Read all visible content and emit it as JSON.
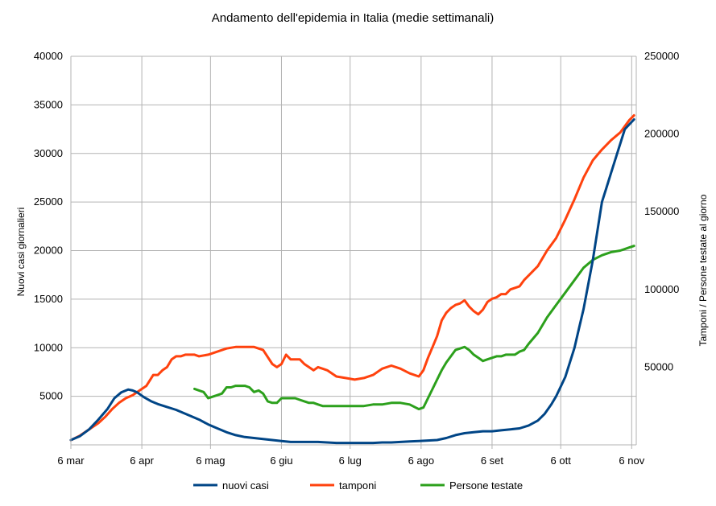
{
  "chart_data": {
    "type": "line",
    "title": "Andamento dell'epidemia in Italia (medie settimanali)",
    "ylabel": "Nuovi casi giornalieri",
    "y2label": "Tamponi / Persone testate al giorno",
    "x_ticks": [
      "6 mar",
      "6 apr",
      "6 mag",
      "6 giu",
      "6 lug",
      "6 ago",
      "6 set",
      "6 ott",
      "6 nov"
    ],
    "xlim_days": [
      0,
      247
    ],
    "ylim": [
      0,
      40000
    ],
    "y_ticks": [
      "5000",
      "10000",
      "15000",
      "20000",
      "25000",
      "30000",
      "35000",
      "40000"
    ],
    "y2lim": [
      0,
      250000
    ],
    "y2_ticks": [
      "50000",
      "100000",
      "150000",
      "200000",
      "250000"
    ],
    "grid": true,
    "legend": "bottom",
    "series": [
      {
        "name": "nuovi casi",
        "axis": "left",
        "color": "#004586",
        "x": [
          0,
          4,
          8,
          12,
          16,
          19,
          22,
          25,
          27,
          29,
          32,
          35,
          38,
          42,
          46,
          52,
          56,
          60,
          64,
          68,
          72,
          76,
          80,
          84,
          88,
          92,
          96,
          100,
          104,
          108,
          112,
          116,
          120,
          124,
          128,
          132,
          136,
          140,
          144,
          148,
          152,
          156,
          160,
          164,
          168,
          172,
          176,
          180,
          184,
          188,
          192,
          196,
          200,
          204,
          207,
          210,
          212,
          214,
          216,
          218,
          220,
          222,
          224,
          226,
          228,
          230,
          232,
          234,
          236,
          238,
          240,
          242,
          244,
          246
        ],
        "values": [
          500,
          900,
          1600,
          2600,
          3700,
          4800,
          5400,
          5700,
          5600,
          5400,
          4900,
          4500,
          4200,
          3900,
          3600,
          3000,
          2600,
          2100,
          1700,
          1300,
          1000,
          800,
          700,
          600,
          500,
          400,
          300,
          300,
          300,
          300,
          250,
          200,
          200,
          200,
          200,
          200,
          250,
          250,
          300,
          350,
          400,
          450,
          500,
          700,
          1000,
          1200,
          1300,
          1400,
          1400,
          1500,
          1600,
          1700,
          2000,
          2500,
          3200,
          4200,
          5000,
          6000,
          7000,
          8500,
          10000,
          12000,
          14000,
          16500,
          19000,
          22000,
          25000,
          26500,
          28000,
          29500,
          31000,
          32500,
          33000,
          33500
        ]
      },
      {
        "name": "tamponi",
        "axis": "right",
        "color": "#ff420e",
        "x": [
          0,
          4,
          8,
          12,
          15,
          18,
          21,
          24,
          27,
          30,
          33,
          36,
          38,
          40,
          42,
          44,
          46,
          48,
          50,
          52,
          54,
          56,
          60,
          64,
          68,
          72,
          76,
          80,
          84,
          88,
          90,
          92,
          94,
          96,
          98,
          100,
          102,
          104,
          106,
          108,
          110,
          112,
          116,
          120,
          124,
          128,
          132,
          136,
          140,
          144,
          148,
          152,
          154,
          156,
          158,
          160,
          162,
          164,
          166,
          168,
          170,
          172,
          174,
          176,
          178,
          180,
          182,
          184,
          186,
          188,
          190,
          192,
          196,
          198,
          200,
          204,
          208,
          212,
          216,
          220,
          224,
          228,
          232,
          236,
          240,
          242,
          244,
          246
        ],
        "values": [
          3000,
          6000,
          10000,
          14000,
          18000,
          23000,
          27000,
          30000,
          32000,
          35000,
          38000,
          45000,
          45000,
          48000,
          50000,
          55000,
          57000,
          57000,
          58000,
          58000,
          58000,
          57000,
          58000,
          60000,
          62000,
          63000,
          63000,
          63000,
          61000,
          52000,
          50000,
          52000,
          58000,
          55000,
          55000,
          55000,
          52000,
          50000,
          48000,
          50000,
          49000,
          48000,
          44000,
          43000,
          42000,
          43000,
          45000,
          49000,
          51000,
          49000,
          46000,
          44000,
          48000,
          56000,
          63000,
          70000,
          80000,
          85000,
          88000,
          90000,
          91000,
          93000,
          89000,
          86000,
          84000,
          87000,
          92000,
          94000,
          95000,
          97000,
          97000,
          100000,
          102000,
          106000,
          109000,
          115000,
          125000,
          133000,
          145000,
          158000,
          172000,
          183000,
          190000,
          196000,
          201000,
          205000,
          209000,
          212000
        ]
      },
      {
        "name": "Persone testate",
        "axis": "right",
        "color": "#2ca01c",
        "x": [
          54,
          56,
          58,
          60,
          62,
          64,
          66,
          68,
          70,
          72,
          74,
          76,
          78,
          80,
          82,
          84,
          86,
          88,
          90,
          92,
          94,
          96,
          98,
          100,
          102,
          104,
          106,
          108,
          110,
          112,
          116,
          120,
          124,
          128,
          132,
          136,
          140,
          144,
          148,
          152,
          154,
          156,
          158,
          160,
          162,
          164,
          166,
          168,
          170,
          172,
          174,
          176,
          178,
          180,
          182,
          184,
          186,
          188,
          190,
          192,
          194,
          196,
          198,
          200,
          204,
          208,
          212,
          216,
          220,
          224,
          228,
          232,
          236,
          240,
          242,
          244,
          246
        ],
        "values": [
          36000,
          35000,
          34000,
          30000,
          31000,
          32000,
          33000,
          37000,
          37000,
          38000,
          38000,
          38000,
          37000,
          34000,
          35000,
          33000,
          28000,
          27000,
          27000,
          30000,
          30000,
          30000,
          30000,
          29000,
          28000,
          27000,
          27000,
          26000,
          25000,
          25000,
          25000,
          25000,
          25000,
          25000,
          26000,
          26000,
          27000,
          27000,
          26000,
          23000,
          24000,
          30000,
          36000,
          42000,
          48000,
          53000,
          57000,
          61000,
          62000,
          63000,
          61000,
          58000,
          56000,
          54000,
          55000,
          56000,
          57000,
          57000,
          58000,
          58000,
          58000,
          60000,
          61000,
          65000,
          72000,
          82000,
          90000,
          98000,
          106000,
          114000,
          119000,
          122000,
          124000,
          125000,
          126000,
          127000,
          128000
        ]
      }
    ]
  }
}
